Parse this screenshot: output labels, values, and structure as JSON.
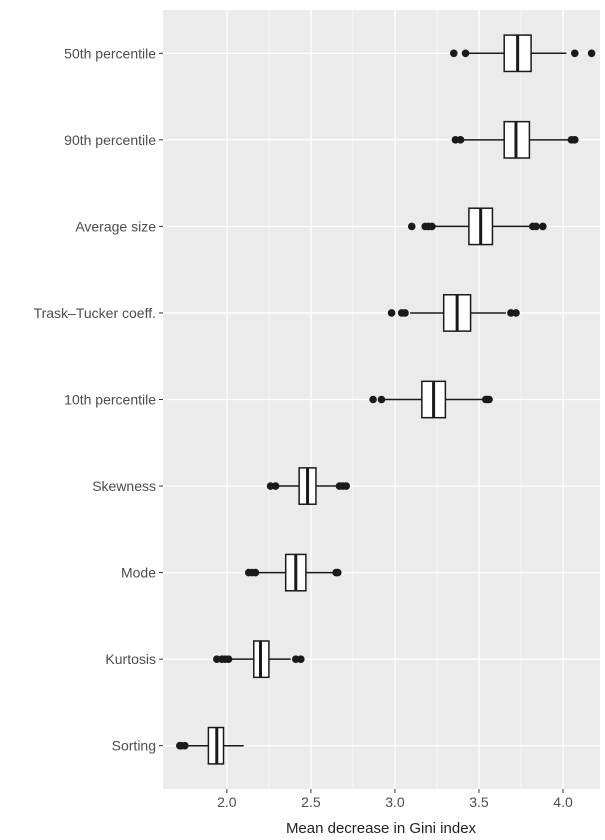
{
  "chart_data": {
    "type": "boxplot",
    "orientation": "horizontal",
    "title": "",
    "xlabel": "Mean decrease in Gini index",
    "ylabel": "",
    "xlim": [
      1.62,
      4.22
    ],
    "x_ticks": [
      2.0,
      2.5,
      3.0,
      3.5,
      4.0
    ],
    "x_tick_labels": [
      "2.0",
      "2.5",
      "3.0",
      "3.5",
      "4.0"
    ],
    "grid": true,
    "colors": {
      "panel": "#ebebeb",
      "grid": "#ffffff",
      "box_fill": "#ffffff",
      "stroke": "#1a1a1a"
    },
    "categories": [
      "50th percentile",
      "90th percentile",
      "Average size",
      "Trask–Tucker coeff.",
      "10th percentile",
      "Skewness",
      "Mode",
      "Kurtosis",
      "Sorting"
    ],
    "boxes": [
      {
        "name": "50th percentile",
        "whisker_low": 3.43,
        "q1": 3.65,
        "median": 3.73,
        "q3": 3.81,
        "whisker_high": 4.02,
        "outliers": [
          3.35,
          3.42,
          4.07,
          4.17
        ]
      },
      {
        "name": "90th percentile",
        "whisker_low": 3.41,
        "q1": 3.65,
        "median": 3.72,
        "q3": 3.8,
        "whisker_high": 4.03,
        "outliers": [
          3.36,
          3.39,
          4.05,
          4.07
        ]
      },
      {
        "name": "Average size",
        "whisker_low": 3.24,
        "q1": 3.44,
        "median": 3.51,
        "q3": 3.58,
        "whisker_high": 3.8,
        "outliers": [
          3.1,
          3.18,
          3.2,
          3.22,
          3.82,
          3.84,
          3.88
        ]
      },
      {
        "name": "Trask–Tucker coeff.",
        "whisker_low": 3.09,
        "q1": 3.29,
        "median": 3.37,
        "q3": 3.45,
        "whisker_high": 3.66,
        "outliers": [
          2.98,
          3.04,
          3.06,
          3.69,
          3.72
        ]
      },
      {
        "name": "10th percentile",
        "whisker_low": 2.94,
        "q1": 3.16,
        "median": 3.23,
        "q3": 3.3,
        "whisker_high": 3.52,
        "outliers": [
          2.87,
          2.92,
          3.54,
          3.55,
          3.56
        ]
      },
      {
        "name": "Skewness",
        "whisker_low": 2.3,
        "q1": 2.43,
        "median": 2.48,
        "q3": 2.53,
        "whisker_high": 2.66,
        "outliers": [
          2.26,
          2.29,
          2.67,
          2.69,
          2.71
        ]
      },
      {
        "name": "Mode",
        "whisker_low": 2.18,
        "q1": 2.35,
        "median": 2.41,
        "q3": 2.47,
        "whisker_high": 2.63,
        "outliers": [
          2.13,
          2.15,
          2.17,
          2.65,
          2.66
        ]
      },
      {
        "name": "Kurtosis",
        "whisker_low": 2.03,
        "q1": 2.16,
        "median": 2.2,
        "q3": 2.25,
        "whisker_high": 2.38,
        "outliers": [
          1.94,
          1.97,
          1.99,
          2.01,
          2.41,
          2.44
        ]
      },
      {
        "name": "Sorting",
        "whisker_low": 1.76,
        "q1": 1.89,
        "median": 1.94,
        "q3": 1.98,
        "whisker_high": 2.1,
        "outliers": [
          1.72,
          1.73,
          1.75
        ]
      }
    ]
  }
}
